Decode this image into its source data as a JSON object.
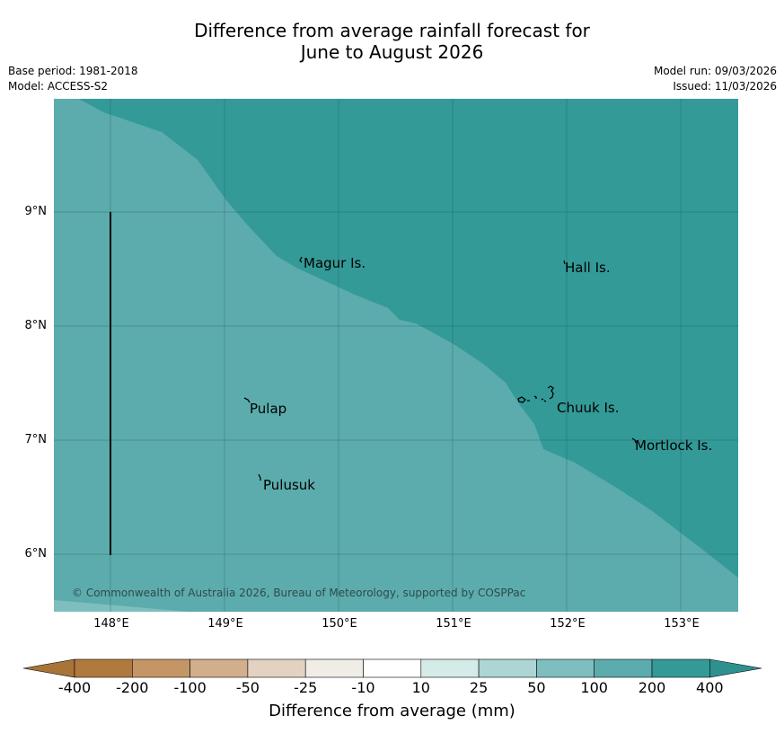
{
  "title": {
    "line1": "Difference from average rainfall forecast for",
    "line2": "June to August 2026"
  },
  "meta": {
    "base_period": "Base period: 1981-2018",
    "model": "Model: ACCESS-S2",
    "model_run": "Model run: 09/03/2026",
    "issued": "Issued: 11/03/2026"
  },
  "map": {
    "lat_labels": [
      "9°N",
      "8°N",
      "7°N",
      "6°N"
    ],
    "lon_labels": [
      "148°E",
      "149°E",
      "150°E",
      "151°E",
      "152°E",
      "153°E"
    ],
    "places": [
      {
        "name": "Magur Is.",
        "key": "magur"
      },
      {
        "name": "Hall Is.",
        "key": "hall"
      },
      {
        "name": "Pulap",
        "key": "pulap"
      },
      {
        "name": "Chuuk Is.",
        "key": "chuuk"
      },
      {
        "name": "Mortlock Is.",
        "key": "mortlock"
      },
      {
        "name": "Pulusuk",
        "key": "pulusuk"
      }
    ],
    "copyright": "© Commonwealth of Australia 2026, Bureau of Meteorology, supported by COSPPac",
    "colors": {
      "band_200_400": "#339a98",
      "band_100_200": "#5cacad",
      "band_50_100": "#7ebebe"
    }
  },
  "colorbar": {
    "ticks": [
      "-400",
      "-200",
      "-100",
      "-50",
      "-25",
      "-10",
      "10",
      "25",
      "50",
      "100",
      "200",
      "400"
    ],
    "colors": [
      "#a97438",
      "#b07a3f",
      "#c49666",
      "#d1ae8c",
      "#e3d1c1",
      "#f0ede6",
      "#ffffff",
      "#d5ebe8",
      "#acd5d4",
      "#7ebebe",
      "#5cacad",
      "#339a98",
      "#2e918f"
    ],
    "label": "Difference from average (mm)"
  }
}
